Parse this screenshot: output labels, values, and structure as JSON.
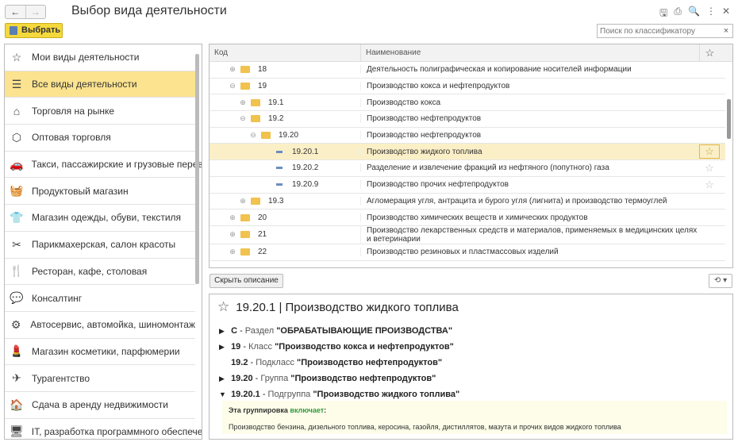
{
  "header": {
    "back": "←",
    "forward": "→",
    "title": "Выбор вида деятельности",
    "select_label": "Выбрать",
    "search_placeholder": "Поиск по классификатору",
    "search_clear": "×",
    "icons": [
      "save-icon",
      "print-icon",
      "preview-icon",
      "more-icon",
      "close-icon"
    ]
  },
  "sidebar": {
    "items": [
      {
        "label": "Мои виды деятельности",
        "icon": "☆"
      },
      {
        "label": "Все виды деятельности",
        "icon": "☰",
        "active": true
      },
      {
        "label": "Торговля на рынке",
        "icon": "⌂"
      },
      {
        "label": "Оптовая торговля",
        "icon": "⬡"
      },
      {
        "label": "Такси, пассажирские и грузовые перевозки",
        "icon": "🚗"
      },
      {
        "label": "Продуктовый магазин",
        "icon": "🧺"
      },
      {
        "label": "Магазин одежды, обуви, текстиля",
        "icon": "👕"
      },
      {
        "label": "Парикмахерская, салон красоты",
        "icon": "✂"
      },
      {
        "label": "Ресторан, кафе, столовая",
        "icon": "🍴"
      },
      {
        "label": "Консалтинг",
        "icon": "💬"
      },
      {
        "label": "Автосервис, автомойка, шиномонтаж",
        "icon": "⚙"
      },
      {
        "label": "Магазин косметики, парфюмерии",
        "icon": "💄"
      },
      {
        "label": "Турагентство",
        "icon": "✈"
      },
      {
        "label": "Сдача в аренду недвижимости",
        "icon": "🏠"
      },
      {
        "label": "IT, разработка программного обеспечения",
        "icon": "🖥"
      }
    ]
  },
  "grid": {
    "col_code": "Код",
    "col_name": "Наименование",
    "rows": [
      {
        "code": "18",
        "name": "Деятельность полиграфическая и копирование носителей информации",
        "level": 0,
        "type": "folder",
        "exp": "⊕"
      },
      {
        "code": "19",
        "name": "Производство кокса и нефтепродуктов",
        "level": 0,
        "type": "folder",
        "exp": "⊖"
      },
      {
        "code": "19.1",
        "name": "Производство кокса",
        "level": 1,
        "type": "folder",
        "exp": "⊕"
      },
      {
        "code": "19.2",
        "name": "Производство нефтепродуктов",
        "level": 1,
        "type": "folder",
        "exp": "⊖"
      },
      {
        "code": "19.20",
        "name": "Производство нефтепродуктов",
        "level": 2,
        "type": "folder",
        "exp": "⊖"
      },
      {
        "code": "19.20.1",
        "name": "Производство жидкого топлива",
        "level": 3,
        "type": "leaf",
        "selected": true,
        "star": true
      },
      {
        "code": "19.20.2",
        "name": "Разделение и извлечение фракций из нефтяного (попутного) газа",
        "level": 3,
        "type": "leaf",
        "star": true
      },
      {
        "code": "19.20.9",
        "name": "Производство прочих нефтепродуктов",
        "level": 3,
        "type": "leaf",
        "star": true
      },
      {
        "code": "19.3",
        "name": "Агломерация угля, антрацита и бурого угля (лигнита) и производство термоуглей",
        "level": 1,
        "type": "folder",
        "exp": "⊕"
      },
      {
        "code": "20",
        "name": "Производство химических веществ и химических продуктов",
        "level": 0,
        "type": "folder",
        "exp": "⊕"
      },
      {
        "code": "21",
        "name": "Производство лекарственных средств и материалов, применяемых в медицинских целях и ветеринарии",
        "level": 0,
        "type": "folder",
        "exp": "⊕"
      },
      {
        "code": "22",
        "name": "Производство резиновых и пластмассовых изделий",
        "level": 0,
        "type": "folder",
        "exp": "⊕"
      }
    ]
  },
  "buttons": {
    "hide_description": "Скрыть описание",
    "history": "⟲ ▾"
  },
  "description": {
    "title": "19.20.1 | Производство жидкого топлива",
    "hierarchy": [
      {
        "arrow": "▶",
        "code": "C",
        "sep": " - ",
        "kind": "Раздел ",
        "name": "\"ОБРАБАТЫВАЮЩИЕ ПРОИЗВОДСТВА\""
      },
      {
        "arrow": "▶",
        "code": "19",
        "sep": " - ",
        "kind": "Класс ",
        "name": "\"Производство кокса и нефтепродуктов\""
      },
      {
        "arrow": "",
        "code": "19.2",
        "sep": " - ",
        "kind": "Подкласс ",
        "name": "\"Производство нефтепродуктов\""
      },
      {
        "arrow": "▶",
        "code": "19.20",
        "sep": " - ",
        "kind": "Группа ",
        "name": "\"Производство нефтепродуктов\""
      },
      {
        "arrow": "▼",
        "code": "19.20.1",
        "sep": " - ",
        "kind": "Подгруппа ",
        "name": "\"Производство жидкого топлива\""
      }
    ],
    "includes_prefix": "Эта группировка ",
    "includes_word": "включает",
    "includes_suffix": ":",
    "includes_text": "Производство бензина, дизельного топлива, керосина, газойля, дистиллятов, мазута и прочих видов жидкого топлива"
  },
  "colors": {
    "accent": "#f5d93c",
    "active_item": "#fbe38f",
    "selected_row": "#fbefc7",
    "includes_green": "#2f9a3b"
  }
}
